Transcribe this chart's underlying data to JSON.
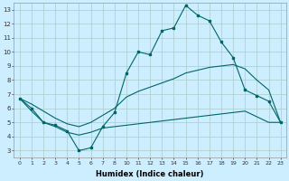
{
  "xlabel": "Humidex (Indice chaleur)",
  "background_color": "#cceeff",
  "grid_color": "#aacccc",
  "line_color": "#006666",
  "xtick_labels": [
    "0",
    "1",
    "2",
    "3",
    "4",
    "5",
    "6",
    "7",
    "8",
    "10",
    "11",
    "12",
    "13",
    "14",
    "15",
    "16",
    "17",
    "18",
    "19",
    "20",
    "21",
    "22",
    "23"
  ],
  "yticks": [
    3,
    4,
    5,
    6,
    7,
    8,
    9,
    10,
    11,
    12,
    13
  ],
  "line1_y": [
    6.7,
    6.0,
    5.0,
    4.8,
    4.4,
    3.0,
    3.2,
    4.7,
    5.7,
    8.5,
    10.0,
    9.8,
    11.5,
    11.7,
    13.3,
    12.6,
    12.2,
    10.7,
    9.6,
    7.3,
    6.9,
    6.5,
    5.0
  ],
  "line2_y": [
    6.7,
    6.3,
    5.8,
    5.3,
    4.9,
    4.7,
    5.0,
    5.5,
    6.0,
    6.8,
    7.2,
    7.5,
    7.8,
    8.1,
    8.5,
    8.7,
    8.9,
    9.0,
    9.1,
    8.8,
    8.0,
    7.3,
    5.0
  ],
  "line3_y": [
    6.7,
    5.8,
    5.0,
    4.7,
    4.3,
    4.1,
    4.3,
    4.6,
    4.7,
    4.8,
    4.9,
    5.0,
    5.1,
    5.2,
    5.3,
    5.4,
    5.5,
    5.6,
    5.7,
    5.8,
    5.4,
    5.0,
    5.0
  ]
}
